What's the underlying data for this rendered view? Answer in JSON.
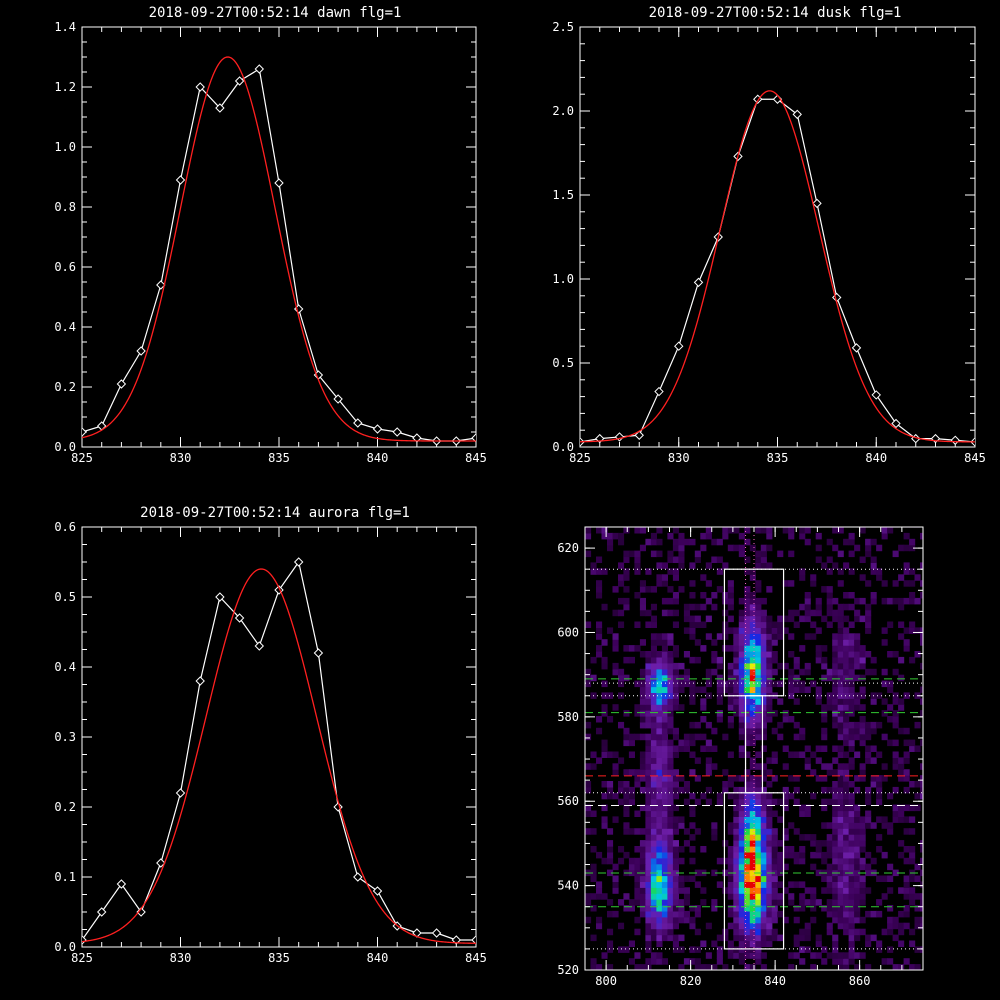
{
  "colors": {
    "background": "#000000",
    "axes": "#ffffff",
    "data": "#ffffff",
    "fit": "#ff2020",
    "guide_green": "#33cc33",
    "guide_red": "#ff2020",
    "guide_pink": "#ff66cc",
    "box": "#ffffff"
  },
  "chart_data": [
    {
      "type": "line",
      "title": "2018-09-27T00:52:14 dawn flg=1",
      "xlim": [
        825,
        845
      ],
      "ylim": [
        0,
        1.4
      ],
      "xticks": [
        "825",
        "830",
        "835",
        "840",
        "845"
      ],
      "yticks": [
        "0.0",
        "0.2",
        "0.4",
        "0.6",
        "0.8",
        "1.0",
        "1.2",
        "1.4"
      ],
      "series": [
        {
          "style": "white line with diamond markers",
          "x": [
            825,
            826,
            827,
            828,
            829,
            830,
            831,
            832,
            833,
            834,
            835,
            836,
            837,
            838,
            839,
            840,
            841,
            842,
            843,
            844,
            845
          ],
          "y": [
            0.05,
            0.07,
            0.21,
            0.32,
            0.54,
            0.89,
            1.2,
            1.13,
            1.22,
            1.26,
            0.88,
            0.46,
            0.24,
            0.16,
            0.08,
            0.06,
            0.05,
            0.03,
            0.02,
            0.02,
            0.03
          ]
        },
        {
          "style": "red gaussian fit",
          "center": 832.4,
          "amplitude": 1.28,
          "sigma": 2.4,
          "baseline": 0.02
        }
      ]
    },
    {
      "type": "line",
      "title": "2018-09-27T00:52:14 dusk flg=1",
      "xlim": [
        825,
        845
      ],
      "ylim": [
        0,
        2.5
      ],
      "xticks": [
        "825",
        "830",
        "835",
        "840",
        "845"
      ],
      "yticks": [
        "0.0",
        "0.5",
        "1.0",
        "1.5",
        "2.0",
        "2.5"
      ],
      "series": [
        {
          "style": "white line with diamond markers",
          "x": [
            825,
            826,
            827,
            828,
            829,
            830,
            831,
            832,
            833,
            834,
            835,
            836,
            837,
            838,
            839,
            840,
            841,
            842,
            843,
            844,
            845
          ],
          "y": [
            0.03,
            0.05,
            0.06,
            0.07,
            0.33,
            0.6,
            0.98,
            1.25,
            1.73,
            2.07,
            2.07,
            1.98,
            1.45,
            0.89,
            0.59,
            0.31,
            0.14,
            0.05,
            0.05,
            0.04,
            0.03
          ]
        },
        {
          "style": "red gaussian fit",
          "center": 834.6,
          "amplitude": 2.09,
          "sigma": 2.5,
          "baseline": 0.03
        }
      ]
    },
    {
      "type": "line",
      "title": "2018-09-27T00:52:14 aurora flg=1",
      "xlim": [
        825,
        845
      ],
      "ylim": [
        0,
        0.6
      ],
      "xticks": [
        "825",
        "830",
        "835",
        "840",
        "845"
      ],
      "yticks": [
        "0.0",
        "0.1",
        "0.2",
        "0.3",
        "0.4",
        "0.5",
        "0.6"
      ],
      "series": [
        {
          "style": "white line with diamond markers",
          "x": [
            825,
            826,
            827,
            828,
            829,
            830,
            831,
            832,
            833,
            834,
            835,
            836,
            837,
            838,
            839,
            840,
            841,
            842,
            843,
            844,
            845
          ],
          "y": [
            0.01,
            0.05,
            0.09,
            0.05,
            0.12,
            0.22,
            0.38,
            0.5,
            0.47,
            0.43,
            0.51,
            0.55,
            0.42,
            0.2,
            0.1,
            0.08,
            0.03,
            0.02,
            0.02,
            0.01,
            0.01
          ]
        },
        {
          "style": "red gaussian fit",
          "center": 834.1,
          "amplitude": 0.535,
          "sigma": 2.8,
          "baseline": 0.005
        }
      ]
    },
    {
      "type": "heatmap",
      "xlim": [
        795,
        875
      ],
      "ylim": [
        520,
        625
      ],
      "xticks": [
        "800",
        "820",
        "840",
        "860"
      ],
      "yticks": [
        "520",
        "540",
        "560",
        "580",
        "600",
        "620"
      ],
      "colormap": "rainbow (purple-blue-cyan-green-yellow-red)",
      "intensity_blobs": [
        {
          "x": 812,
          "y": 587,
          "sx": 2.0,
          "sy": 3.5,
          "amp": 0.55
        },
        {
          "x": 812,
          "y": 539,
          "sx": 2.0,
          "sy": 6.0,
          "amp": 0.6
        },
        {
          "x": 812,
          "y": 562,
          "sx": 2.2,
          "sy": 14.0,
          "amp": 0.18
        },
        {
          "x": 834,
          "y": 588,
          "sx": 2.0,
          "sy": 6.0,
          "amp": 0.7
        },
        {
          "x": 834,
          "y": 540,
          "sx": 2.3,
          "sy": 7.0,
          "amp": 0.95
        },
        {
          "x": 834,
          "y": 553,
          "sx": 2.0,
          "sy": 6.0,
          "amp": 0.5
        },
        {
          "x": 834,
          "y": 598,
          "sx": 2.0,
          "sy": 5.0,
          "amp": 0.25
        },
        {
          "x": 856,
          "y": 545,
          "sx": 2.5,
          "sy": 14.0,
          "amp": 0.12
        },
        {
          "x": 856,
          "y": 590,
          "sx": 2.5,
          "sy": 12.0,
          "amp": 0.1
        }
      ],
      "boxes": [
        {
          "x0": 828,
          "x1": 842,
          "y0": 585,
          "y1": 615
        },
        {
          "x0": 828,
          "x1": 842,
          "y0": 525,
          "y1": 562
        },
        {
          "x0": 833,
          "x1": 837,
          "y0": 562,
          "y1": 585
        }
      ],
      "hlines": [
        {
          "y": 615,
          "color": "white",
          "dash": "dotted"
        },
        {
          "y": 589,
          "color": "green",
          "dash": "dashed"
        },
        {
          "y": 588,
          "color": "white",
          "dash": "dotted"
        },
        {
          "y": 585,
          "color": "white",
          "dash": "dotted"
        },
        {
          "y": 581,
          "color": "green",
          "dash": "dashed"
        },
        {
          "y": 566,
          "color": "red",
          "dash": "dashed"
        },
        {
          "y": 562,
          "color": "white",
          "dash": "dotted"
        },
        {
          "y": 559,
          "color": "white",
          "dash": "dashed"
        },
        {
          "y": 543,
          "color": "green",
          "dash": "dashed"
        },
        {
          "y": 535,
          "color": "green",
          "dash": "dashed"
        },
        {
          "y": 525,
          "color": "white",
          "dash": "dotted"
        }
      ],
      "vlines": [
        {
          "x": 833,
          "color": "pink",
          "dash": "dotted"
        },
        {
          "x": 835,
          "color": "pink",
          "dash": "dotted"
        }
      ]
    }
  ]
}
